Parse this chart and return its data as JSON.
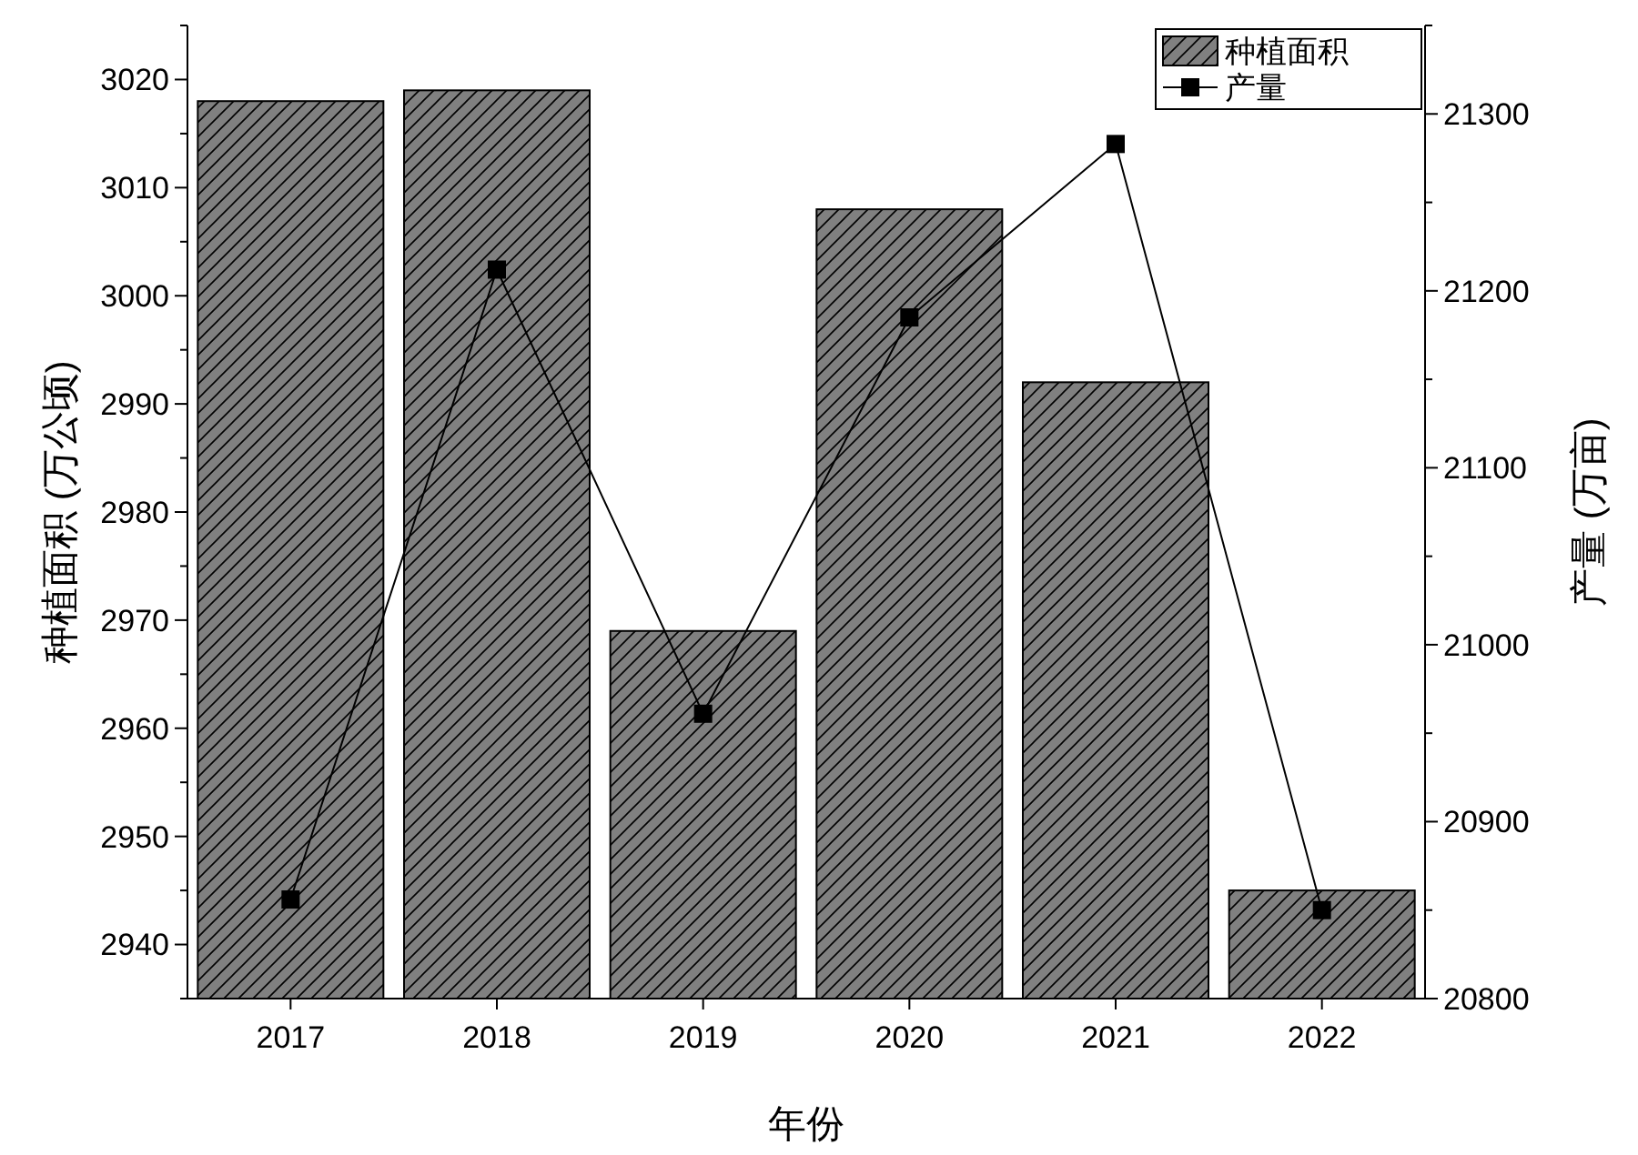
{
  "chart_data": {
    "type": "bar",
    "xlabel": "年份",
    "ylabel": "种植面积 (万公顷)",
    "y2label": "产量 (万亩)",
    "categories": [
      "2017",
      "2018",
      "2019",
      "2020",
      "2021",
      "2022"
    ],
    "series": [
      {
        "name": "种植面积",
        "color": "#808080",
        "values": [
          3018,
          3019,
          2969,
          3008,
          2992,
          2945
        ]
      },
      {
        "name": "产量",
        "type": "line",
        "axis": "y2",
        "color": "#000000",
        "marker": "square",
        "line_style": "solid",
        "values": [
          20856,
          21212,
          20961,
          21185,
          21283,
          20850
        ]
      }
    ],
    "ylim": [
      2935,
      3025
    ],
    "yticks": [
      {
        "value": 2935,
        "label": null
      },
      2940,
      {
        "value": 2945,
        "label": null
      },
      2950,
      {
        "value": 2955,
        "label": null
      },
      2960,
      {
        "value": 2965,
        "label": null
      },
      2970,
      {
        "value": 2975,
        "label": null
      },
      2980,
      {
        "value": 2985,
        "label": null
      },
      2990,
      {
        "value": 2995,
        "label": null
      },
      3000,
      {
        "value": 3005,
        "label": null
      },
      3010,
      {
        "value": 3015,
        "label": null
      },
      3020,
      {
        "value": 3025,
        "label": null
      }
    ],
    "y2lim": [
      20800,
      21350
    ],
    "y2ticks": [
      20800,
      {
        "value": 20850,
        "label": null
      },
      20900,
      {
        "value": 20950,
        "label": null
      },
      21000,
      {
        "value": 21050,
        "label": null
      },
      21100,
      {
        "value": 21150,
        "label": null
      },
      21200,
      {
        "value": 21250,
        "label": null
      },
      21300,
      {
        "value": 21350,
        "label": null
      }
    ],
    "legend": "top right",
    "grid": false
  }
}
